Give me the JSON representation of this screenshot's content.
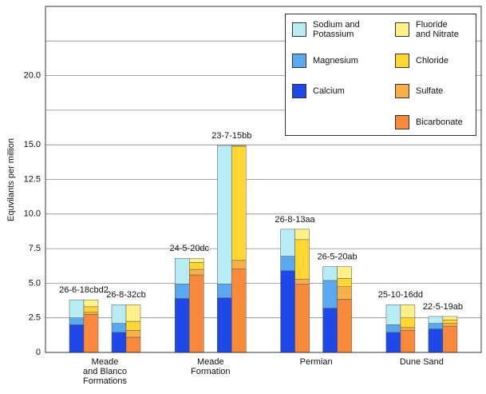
{
  "chart_data": {
    "type": "stacked_bar",
    "y_label": "Equvilants per million",
    "ylim": [
      0,
      25
    ],
    "yticks": [
      0,
      2.5,
      {
        "value": 5,
        "label": "5.0"
      },
      7.5,
      {
        "value": 10,
        "label": "10.0"
      },
      {
        "value": 12.5,
        "label": "12.5"
      },
      {
        "value": 15,
        "label": "15.0"
      },
      {
        "value": 17.5,
        "label": null
      },
      {
        "value": 20,
        "label": "20.0"
      },
      {
        "value": 22.5,
        "label": null
      }
    ],
    "grid": true,
    "legend": "upper right",
    "groups": [
      {
        "name": "Meade\nand Blanco\nFormations",
        "categories": [
          "26-6-18cbd2",
          "26-8-32cb"
        ]
      },
      {
        "name": "Meade\nFormation",
        "categories": [
          "24-5-20dc",
          "23-7-15bb"
        ]
      },
      {
        "name": "Permian",
        "categories": [
          "26-8-13aa",
          "26-5-20ab"
        ]
      },
      {
        "name": "Dune Sand",
        "categories": [
          "25-10-16dd",
          "22-5-19ab"
        ]
      }
    ],
    "stacks": [
      {
        "series": [
          {
            "name": "Calcium",
            "color": "#1f48e8",
            "values": [
              2.0,
              1.45,
              3.9,
              3.95,
              5.9,
              3.2,
              1.45,
              1.7
            ]
          },
          {
            "name": "Magnesium",
            "color": "#5aa8ef",
            "values": [
              0.5,
              0.65,
              1.05,
              1.0,
              1.05,
              2.0,
              0.55,
              0.4
            ]
          },
          {
            "name": "Sodium and\nPotassium",
            "color": "#b8ecf5",
            "values": [
              1.3,
              1.35,
              1.85,
              10.0,
              1.95,
              1.0,
              1.45,
              0.5
            ]
          }
        ]
      },
      {
        "series": [
          {
            "name": "Bicarbonate",
            "color": "#f98a3c",
            "values": [
              2.75,
              1.1,
              5.6,
              6.05,
              4.95,
              3.85,
              1.6,
              1.9
            ]
          },
          {
            "name": "Sulfate",
            "color": "#f8b04a",
            "values": [
              0.15,
              0.5,
              0.4,
              0.6,
              0.35,
              0.9,
              0.2,
              0.2
            ]
          },
          {
            "name": "Chloride",
            "color": "#ffd633",
            "values": [
              0.4,
              0.65,
              0.5,
              8.25,
              2.85,
              0.6,
              0.7,
              0.25
            ]
          },
          {
            "name": "Fluoride\nand Nitrate",
            "color": "#fff08a",
            "values": [
              0.5,
              1.2,
              0.3,
              0.05,
              0.75,
              0.85,
              0.95,
              0.25
            ]
          }
        ]
      }
    ]
  }
}
